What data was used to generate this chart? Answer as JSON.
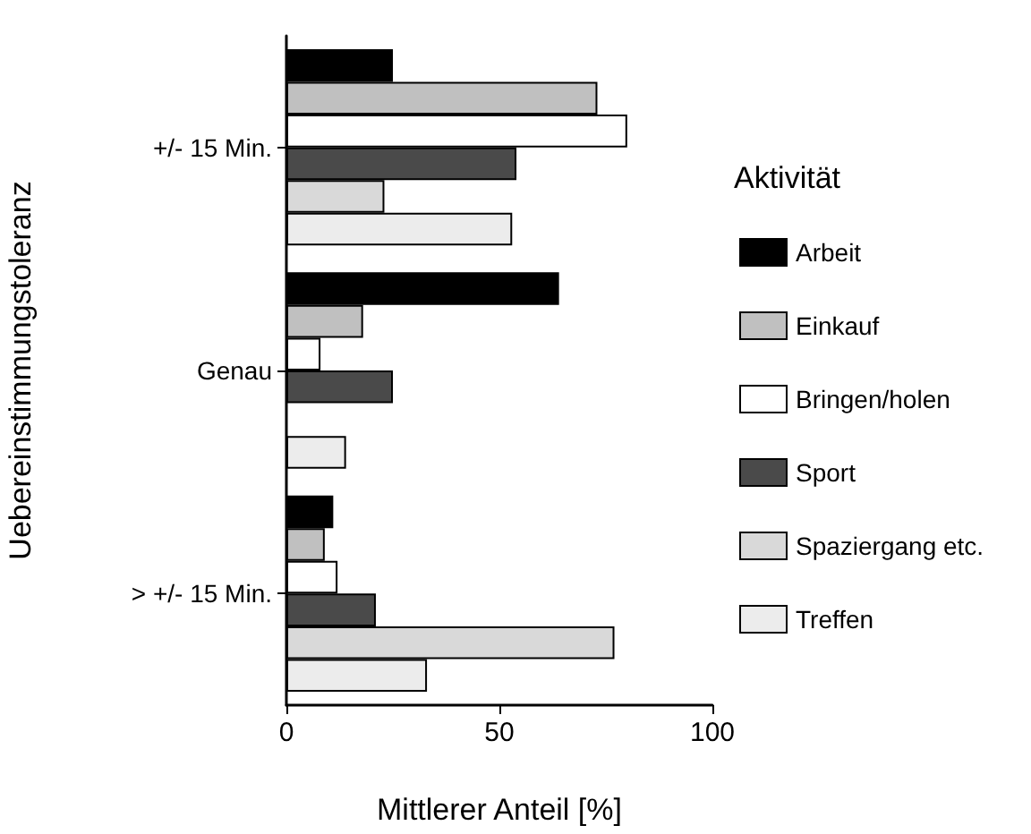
{
  "chart_data": {
    "type": "bar",
    "orientation": "horizontal",
    "xlabel": "Mittlerer Anteil [%]",
    "ylabel": "Uebereinstimmungstoleranz",
    "legend_title": "Aktivität",
    "categories": [
      "+/- 15 Min.",
      "Genau",
      "> +/- 15 Min."
    ],
    "series": [
      {
        "name": "Arbeit",
        "color": "#000000",
        "values": [
          25,
          64,
          11
        ]
      },
      {
        "name": "Einkauf",
        "color": "#c0c0c0",
        "values": [
          73,
          18,
          9
        ]
      },
      {
        "name": "Bringen/holen",
        "color": "#ffffff",
        "values": [
          80,
          8,
          12
        ]
      },
      {
        "name": "Sport",
        "color": "#4a4a4a",
        "values": [
          54,
          25,
          21
        ]
      },
      {
        "name": "Spaziergang etc.",
        "color": "#d9d9d9",
        "values": [
          23,
          null,
          77
        ]
      },
      {
        "name": "Treffen",
        "color": "#ececec",
        "values": [
          53,
          14,
          33
        ]
      }
    ],
    "xlim": [
      0,
      100
    ],
    "xticks": [
      0,
      50,
      100
    ],
    "grid": false,
    "legend": "right"
  }
}
